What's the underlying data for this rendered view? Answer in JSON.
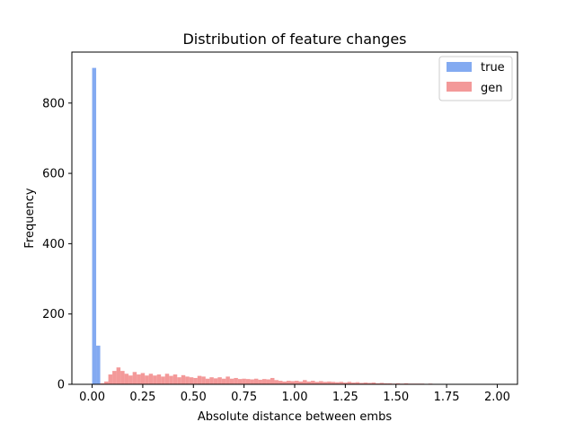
{
  "chart_data": {
    "type": "bar",
    "title": "Distribution of feature changes",
    "xlabel": "Absolute distance between embs",
    "ylabel": "Frequency",
    "xlim": [
      -0.1,
      2.1
    ],
    "ylim": [
      0,
      945
    ],
    "xticks": [
      0.0,
      0.25,
      0.5,
      0.75,
      1.0,
      1.25,
      1.5,
      1.75,
      2.0
    ],
    "xtick_labels": [
      "0.00",
      "0.25",
      "0.50",
      "0.75",
      "1.00",
      "1.25",
      "1.50",
      "1.75",
      "2.00"
    ],
    "yticks": [
      0,
      200,
      400,
      600,
      800
    ],
    "ytick_labels": [
      "0",
      "200",
      "400",
      "600",
      "800"
    ],
    "grid": false,
    "legend": {
      "placement": "top-right",
      "entries": [
        "true",
        "gen"
      ]
    },
    "series": [
      {
        "name": "true",
        "color": "#6495ed",
        "bin_start": 0.0,
        "bin_width": 0.02,
        "values": [
          900,
          110
        ]
      },
      {
        "name": "gen",
        "color": "#f08080",
        "bin_start": 0.04,
        "bin_width": 0.02,
        "values": [
          3,
          8,
          28,
          38,
          48,
          38,
          30,
          25,
          35,
          28,
          32,
          25,
          30,
          25,
          28,
          22,
          30,
          24,
          28,
          20,
          26,
          22,
          20,
          18,
          24,
          22,
          16,
          20,
          17,
          20,
          16,
          22,
          16,
          18,
          15,
          16,
          15,
          14,
          16,
          13,
          15,
          14,
          18,
          12,
          10,
          8,
          10,
          9,
          10,
          8,
          12,
          8,
          10,
          7,
          9,
          7,
          8,
          7,
          6,
          7,
          5,
          7,
          5,
          6,
          4,
          5,
          4,
          5,
          3,
          4,
          3,
          3,
          2,
          3,
          2,
          3,
          2,
          2,
          2,
          2,
          1,
          2,
          1,
          1,
          1,
          1,
          1,
          1,
          1,
          1,
          1,
          1
        ]
      }
    ]
  }
}
